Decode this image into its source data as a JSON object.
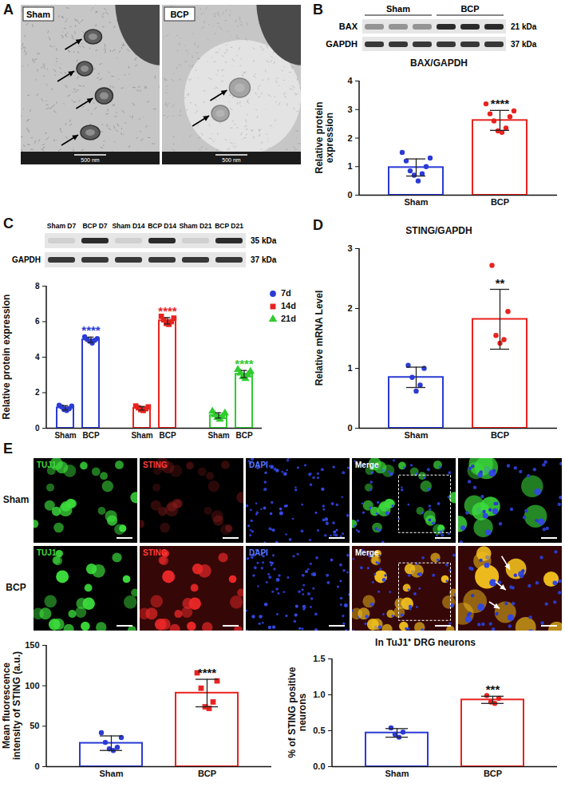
{
  "figure": {
    "A": {
      "letter": "A",
      "images": [
        {
          "label": "Sham",
          "scale_bar": "500 nm"
        },
        {
          "label": "BCP",
          "scale_bar": "500 nm"
        }
      ]
    },
    "B": {
      "letter": "B",
      "blot": {
        "groups": [
          "Sham",
          "BCP"
        ],
        "rows": [
          {
            "name": "BAX",
            "size": "21 kDa"
          },
          {
            "name": "GAPDH",
            "size": "37 kDa"
          }
        ]
      }
    },
    "C": {
      "letter": "C",
      "blot": {
        "lanes": [
          "Sham D7",
          "BCP D7",
          "Sham D14",
          "BCP D14",
          "Sham D21",
          "BCP D21"
        ],
        "rows": [
          {
            "size": "35 kDa"
          },
          {
            "name": "GAPDH",
            "size": "37 kDa"
          }
        ]
      }
    },
    "D": {
      "letter": "D"
    },
    "E": {
      "letter": "E",
      "image_grid": {
        "rows": [
          "Sham",
          "BCP"
        ],
        "columns": [
          "TUJ1",
          "STING",
          "DAPI",
          "Merge",
          null
        ]
      }
    }
  },
  "chart_data": [
    {
      "type": "bar",
      "title": "BAX/GAPDH",
      "ylabel": "Relative protein expression",
      "ylim": [
        0,
        4
      ],
      "yticks": [
        0,
        1,
        2,
        3,
        4
      ],
      "series": [
        {
          "name": "Sham",
          "color": "#2b3bd4",
          "marker": "circle",
          "values": [
            0.97
          ],
          "error": [
            0.3
          ],
          "points": [
            [
              1.5,
              1.3,
              1.2,
              1.0,
              0.85,
              0.75,
              0.7,
              0.5
            ]
          ]
        },
        {
          "name": "BCP",
          "color": "#e8231f",
          "marker": "circle",
          "values": [
            2.62
          ],
          "error": [
            0.35
          ],
          "points": [
            [
              3.2,
              2.95,
              2.85,
              2.75,
              2.6,
              2.35,
              2.25,
              2.2
            ]
          ]
        }
      ],
      "annotations": [
        {
          "series": "BCP",
          "text": "****"
        }
      ]
    },
    {
      "type": "bar",
      "ylabel": "Relative protein expression",
      "categories": [
        "Sham",
        "BCP"
      ],
      "ylim": [
        0,
        8
      ],
      "yticks": [
        0,
        2,
        4,
        6,
        8
      ],
      "legend": "right",
      "series": [
        {
          "name": "7d",
          "color": "#2b3bd4",
          "marker": "circle",
          "values": [
            1.15,
            4.98
          ],
          "error": [
            0.12,
            0.15
          ],
          "points": [
            [
              1.3,
              1.25,
              1.2,
              1.1,
              1.05,
              1.0
            ],
            [
              5.15,
              5.05,
              5.0,
              4.95,
              4.9,
              4.8
            ]
          ]
        },
        {
          "name": "14d",
          "color": "#e8231f",
          "marker": "square",
          "values": [
            1.12,
            6.05
          ],
          "error": [
            0.1,
            0.18
          ],
          "points": [
            [
              1.25,
              1.2,
              1.15,
              1.1,
              1.05,
              1.0
            ],
            [
              6.3,
              6.2,
              6.1,
              6.0,
              5.9,
              5.85
            ]
          ]
        },
        {
          "name": "21d",
          "color": "#2ecc2e",
          "marker": "triangle",
          "values": [
            0.72,
            3.05
          ],
          "error": [
            0.15,
            0.2
          ],
          "points": [
            [
              0.95,
              0.85,
              0.75,
              0.65,
              0.6,
              0.5
            ],
            [
              3.3,
              3.2,
              3.1,
              3.0,
              2.9,
              2.8
            ]
          ]
        }
      ],
      "annotations": [
        {
          "series": "7d",
          "category": "BCP",
          "text": "****"
        },
        {
          "series": "14d",
          "category": "BCP",
          "text": "****"
        },
        {
          "series": "21d",
          "category": "BCP",
          "text": "****"
        }
      ]
    },
    {
      "type": "bar",
      "title": "STING/GAPDH",
      "ylabel": "Relative mRNA Level",
      "ylim": [
        0,
        3
      ],
      "yticks": [
        0,
        1,
        2,
        3
      ],
      "series": [
        {
          "name": "Sham",
          "color": "#2b3bd4",
          "marker": "circle",
          "values": [
            0.85
          ],
          "error": [
            0.17
          ],
          "points": [
            [
              1.05,
              1.0,
              0.85,
              0.72,
              0.62
            ]
          ]
        },
        {
          "name": "BCP",
          "color": "#e8231f",
          "marker": "circle",
          "values": [
            1.82
          ],
          "error": [
            0.5
          ],
          "points": [
            [
              2.72,
              1.95,
              1.55,
              1.48,
              1.42
            ]
          ]
        }
      ],
      "annotations": [
        {
          "series": "BCP",
          "text": "**"
        }
      ]
    },
    {
      "type": "bar",
      "ylabel": "Mean fluorescence intensity of STING (a.u.)",
      "ylim": [
        0,
        150
      ],
      "yticks": [
        0,
        50,
        100,
        150
      ],
      "series": [
        {
          "name": "Sham",
          "color": "#2b3bd4",
          "marker": "circle",
          "values": [
            29
          ],
          "error": [
            9
          ],
          "points": [
            [
              42,
              36,
              30,
              24,
              22,
              20
            ]
          ]
        },
        {
          "name": "BCP",
          "color": "#e8231f",
          "marker": "square",
          "values": [
            91
          ],
          "error": [
            17
          ],
          "points": [
            [
              116,
              106,
              97,
              80,
              74,
              72
            ]
          ]
        }
      ],
      "annotations": [
        {
          "series": "BCP",
          "text": "****"
        }
      ]
    },
    {
      "type": "bar",
      "title": "In TuJ1⁺ DRG neurons",
      "ylabel": "% of STING positive neurons",
      "ylim": [
        0,
        1.5
      ],
      "yticks": [
        {
          "value": 0,
          "label": "0.0"
        },
        0.5,
        {
          "value": 1,
          "label": "1.0"
        },
        1.5
      ],
      "series": [
        {
          "name": "Sham",
          "color": "#2b3bd4",
          "marker": "circle",
          "values": [
            0.47
          ],
          "error": [
            0.06
          ],
          "points": [
            [
              0.54,
              0.48,
              0.45,
              0.41
            ]
          ]
        },
        {
          "name": "BCP",
          "color": "#e8231f",
          "marker": "circle",
          "values": [
            0.93
          ],
          "error": [
            0.05
          ],
          "points": [
            [
              0.99,
              0.95,
              0.9,
              0.88
            ]
          ]
        }
      ],
      "annotations": [
        {
          "series": "BCP",
          "text": "***"
        }
      ]
    }
  ]
}
